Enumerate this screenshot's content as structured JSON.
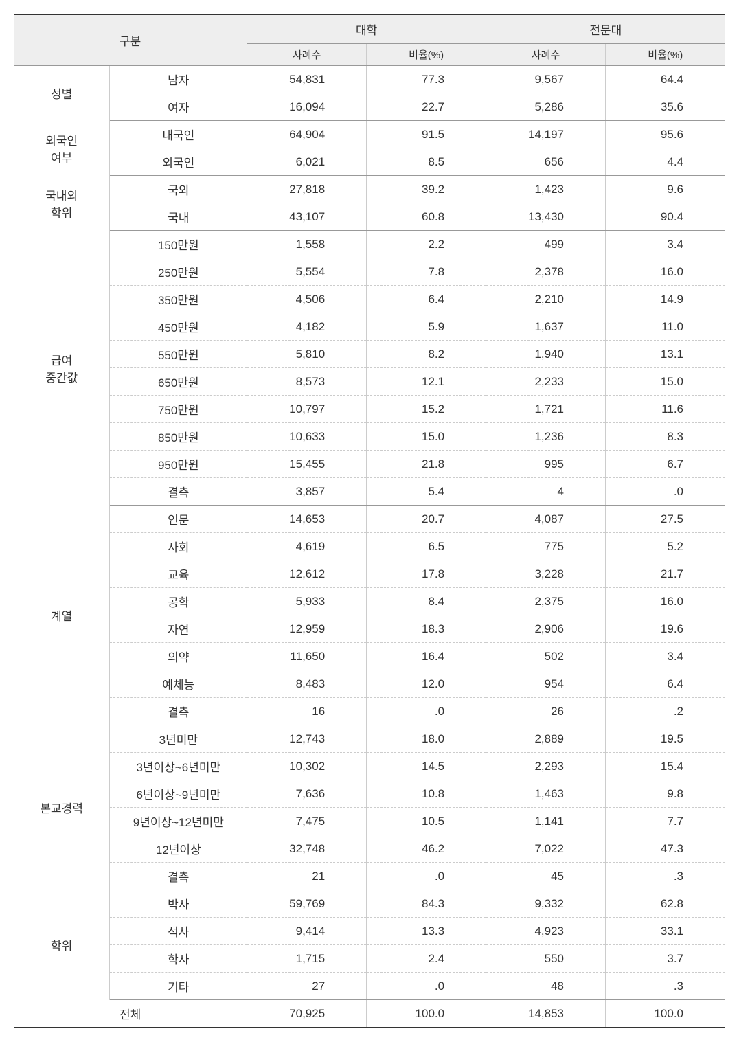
{
  "header": {
    "category": "구분",
    "group1": "대학",
    "group2": "전문대",
    "sub_count": "사례수",
    "sub_pct": "비율(%)"
  },
  "categories": [
    {
      "label": "성별",
      "rows": [
        {
          "sub": "남자",
          "n1": "54,831",
          "p1": "77.3",
          "n2": "9,567",
          "p2": "64.4"
        },
        {
          "sub": "여자",
          "n1": "16,094",
          "p1": "22.7",
          "n2": "5,286",
          "p2": "35.6"
        }
      ]
    },
    {
      "label": "외국인\n여부",
      "rows": [
        {
          "sub": "내국인",
          "n1": "64,904",
          "p1": "91.5",
          "n2": "14,197",
          "p2": "95.6"
        },
        {
          "sub": "외국인",
          "n1": "6,021",
          "p1": "8.5",
          "n2": "656",
          "p2": "4.4"
        }
      ]
    },
    {
      "label": "국내외\n학위",
      "rows": [
        {
          "sub": "국외",
          "n1": "27,818",
          "p1": "39.2",
          "n2": "1,423",
          "p2": "9.6"
        },
        {
          "sub": "국내",
          "n1": "43,107",
          "p1": "60.8",
          "n2": "13,430",
          "p2": "90.4"
        }
      ]
    },
    {
      "label": "급여\n중간값",
      "rows": [
        {
          "sub": "150만원",
          "n1": "1,558",
          "p1": "2.2",
          "n2": "499",
          "p2": "3.4"
        },
        {
          "sub": "250만원",
          "n1": "5,554",
          "p1": "7.8",
          "n2": "2,378",
          "p2": "16.0"
        },
        {
          "sub": "350만원",
          "n1": "4,506",
          "p1": "6.4",
          "n2": "2,210",
          "p2": "14.9"
        },
        {
          "sub": "450만원",
          "n1": "4,182",
          "p1": "5.9",
          "n2": "1,637",
          "p2": "11.0"
        },
        {
          "sub": "550만원",
          "n1": "5,810",
          "p1": "8.2",
          "n2": "1,940",
          "p2": "13.1"
        },
        {
          "sub": "650만원",
          "n1": "8,573",
          "p1": "12.1",
          "n2": "2,233",
          "p2": "15.0"
        },
        {
          "sub": "750만원",
          "n1": "10,797",
          "p1": "15.2",
          "n2": "1,721",
          "p2": "11.6"
        },
        {
          "sub": "850만원",
          "n1": "10,633",
          "p1": "15.0",
          "n2": "1,236",
          "p2": "8.3"
        },
        {
          "sub": "950만원",
          "n1": "15,455",
          "p1": "21.8",
          "n2": "995",
          "p2": "6.7"
        },
        {
          "sub": "결측",
          "n1": "3,857",
          "p1": "5.4",
          "n2": "4",
          "p2": ".0"
        }
      ]
    },
    {
      "label": "계열",
      "rows": [
        {
          "sub": "인문",
          "n1": "14,653",
          "p1": "20.7",
          "n2": "4,087",
          "p2": "27.5"
        },
        {
          "sub": "사회",
          "n1": "4,619",
          "p1": "6.5",
          "n2": "775",
          "p2": "5.2"
        },
        {
          "sub": "교육",
          "n1": "12,612",
          "p1": "17.8",
          "n2": "3,228",
          "p2": "21.7"
        },
        {
          "sub": "공학",
          "n1": "5,933",
          "p1": "8.4",
          "n2": "2,375",
          "p2": "16.0"
        },
        {
          "sub": "자연",
          "n1": "12,959",
          "p1": "18.3",
          "n2": "2,906",
          "p2": "19.6"
        },
        {
          "sub": "의약",
          "n1": "11,650",
          "p1": "16.4",
          "n2": "502",
          "p2": "3.4"
        },
        {
          "sub": "예체능",
          "n1": "8,483",
          "p1": "12.0",
          "n2": "954",
          "p2": "6.4"
        },
        {
          "sub": "결측",
          "n1": "16",
          "p1": ".0",
          "n2": "26",
          "p2": ".2"
        }
      ]
    },
    {
      "label": "본교경력",
      "rows": [
        {
          "sub": "3년미만",
          "n1": "12,743",
          "p1": "18.0",
          "n2": "2,889",
          "p2": "19.5"
        },
        {
          "sub": "3년이상~6년미만",
          "n1": "10,302",
          "p1": "14.5",
          "n2": "2,293",
          "p2": "15.4"
        },
        {
          "sub": "6년이상~9년미만",
          "n1": "7,636",
          "p1": "10.8",
          "n2": "1,463",
          "p2": "9.8"
        },
        {
          "sub": "9년이상~12년미만",
          "n1": "7,475",
          "p1": "10.5",
          "n2": "1,141",
          "p2": "7.7"
        },
        {
          "sub": "12년이상",
          "n1": "32,748",
          "p1": "46.2",
          "n2": "7,022",
          "p2": "47.3"
        },
        {
          "sub": "결측",
          "n1": "21",
          "p1": ".0",
          "n2": "45",
          "p2": ".3"
        }
      ]
    },
    {
      "label": "학위",
      "rows": [
        {
          "sub": "박사",
          "n1": "59,769",
          "p1": "84.3",
          "n2": "9,332",
          "p2": "62.8"
        },
        {
          "sub": "석사",
          "n1": "9,414",
          "p1": "13.3",
          "n2": "4,923",
          "p2": "33.1"
        },
        {
          "sub": "학사",
          "n1": "1,715",
          "p1": "2.4",
          "n2": "550",
          "p2": "3.7"
        },
        {
          "sub": "기타",
          "n1": "27",
          "p1": ".0",
          "n2": "48",
          "p2": ".3"
        }
      ]
    }
  ],
  "total": {
    "label": "전체",
    "n1": "70,925",
    "p1": "100.0",
    "n2": "14,853",
    "p2": "100.0"
  },
  "style": {
    "header_bg": "#eeeeee",
    "border_color": "#999999",
    "dash_color": "#cccccc",
    "text_color": "#333333",
    "font_size_header": 17,
    "font_size_subheader": 15,
    "font_size_body": 17
  }
}
